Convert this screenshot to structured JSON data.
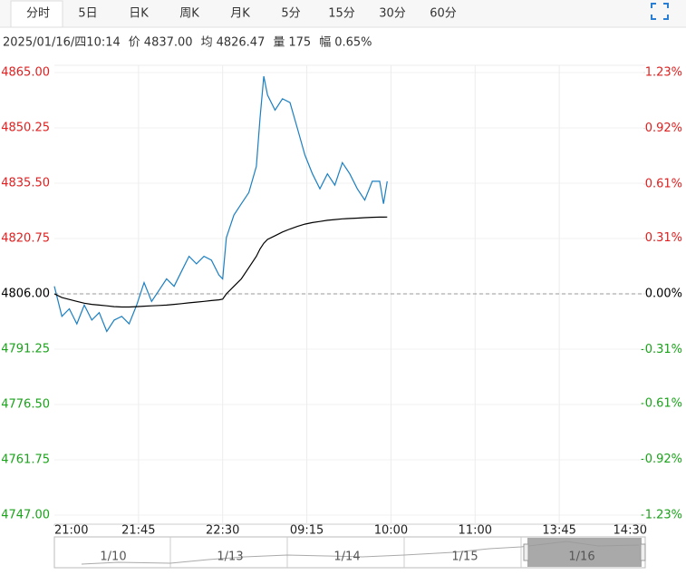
{
  "tabs": [
    "分时",
    "5日",
    "日K",
    "周K",
    "月K",
    "5分",
    "15分",
    "30分",
    "60分"
  ],
  "info": {
    "datetime": "2025/01/16/四10:14",
    "items": [
      {
        "label": "价",
        "value": "4837.00"
      },
      {
        "label": "均",
        "value": "4826.47"
      },
      {
        "label": "量",
        "value": "175"
      },
      {
        "label": "幅",
        "value": "0.65%"
      }
    ]
  },
  "navigator": {
    "labels": [
      "1/10",
      "1/13",
      "1/14",
      "1/15",
      "1/16"
    ]
  },
  "chart_data": {
    "type": "line",
    "x": [
      0,
      4,
      8,
      12,
      16,
      20,
      24,
      28,
      32,
      36,
      40,
      44,
      48,
      52,
      56,
      60,
      64,
      68,
      72,
      76,
      80,
      84,
      88,
      90,
      92,
      96,
      100,
      104,
      108,
      110,
      112,
      114,
      118,
      122,
      126,
      130,
      134,
      138,
      142,
      146,
      150,
      154,
      158,
      162,
      166,
      170,
      174,
      176,
      178
    ],
    "series": [
      {
        "color": "#1b7fc1",
        "values": [
          4808,
          4800,
          4802,
          4798,
          4803,
          4799,
          4801,
          4796,
          4799,
          4800,
          4798,
          4803,
          4809,
          4804,
          4807,
          4810,
          4808,
          4812,
          4816,
          4814,
          4816,
          4815,
          4811,
          4810,
          4821,
          4827,
          4830,
          4833,
          4840,
          4853,
          4864,
          4859,
          4855,
          4858,
          4857,
          4850,
          4843,
          4838,
          4834,
          4838,
          4835,
          4841,
          4838,
          4834,
          4831,
          4836,
          4836,
          4830,
          4836
        ]
      },
      {
        "color": "#000000",
        "values": [
          4806,
          4805,
          4804.5,
          4804,
          4803.5,
          4803.2,
          4803,
          4802.8,
          4802.6,
          4802.5,
          4802.5,
          4802.6,
          4802.7,
          4802.8,
          4802.9,
          4803,
          4803.2,
          4803.4,
          4803.6,
          4803.8,
          4804,
          4804.2,
          4804.4,
          4804.6,
          4806,
          4808,
          4810,
          4813,
          4816,
          4818,
          4819.5,
          4820.5,
          4821.5,
          4822.5,
          4823.3,
          4824,
          4824.6,
          4825,
          4825.3,
          4825.6,
          4825.8,
          4826,
          4826.1,
          4826.2,
          4826.3,
          4826.4,
          4826.45,
          4826.46,
          4826.47
        ]
      }
    ],
    "xlim": [
      0,
      315
    ],
    "xticks": [
      {
        "value": 0,
        "label": "21:00"
      },
      {
        "value": 45,
        "label": "21:45"
      },
      {
        "value": 90,
        "label": "22:30"
      },
      {
        "value": 135,
        "label": "09:15"
      },
      {
        "value": 180,
        "label": "10:00"
      },
      {
        "value": 225,
        "label": "11:00"
      },
      {
        "value": 270,
        "label": "13:45"
      },
      {
        "value": 315,
        "label": "14:30"
      }
    ],
    "ylim": [
      4747,
      4865
    ],
    "yticks": [
      {
        "value": 4865,
        "label": "4865.00"
      },
      {
        "value": 4850.25,
        "label": "4850.25"
      },
      {
        "value": 4835.5,
        "label": "4835.50"
      },
      {
        "value": 4820.75,
        "label": "4820.75"
      },
      {
        "value": 4806,
        "label": "4806.00"
      },
      {
        "value": 4791.25,
        "label": "4791.25"
      },
      {
        "value": 4776.5,
        "label": "4776.50"
      },
      {
        "value": 4761.75,
        "label": "4761.75"
      },
      {
        "value": 4747,
        "label": "4747.00"
      }
    ],
    "y2lim": [
      -1.23,
      1.23
    ],
    "y2ticks": [
      {
        "value": 1.23,
        "label": "1.23%"
      },
      {
        "value": 0.92,
        "label": "0.92%"
      },
      {
        "value": 0.61,
        "label": "0.61%"
      },
      {
        "value": 0.31,
        "label": "0.31%"
      },
      {
        "value": 0,
        "label": "0.00%"
      },
      {
        "value": -0.31,
        "label": "-0.31%"
      },
      {
        "value": -0.61,
        "label": "-0.61%"
      },
      {
        "value": -0.92,
        "label": "-0.92%"
      },
      {
        "value": -1.23,
        "label": "-1.23%"
      }
    ],
    "reference_line": 4806,
    "up_color": "#e02020",
    "down_color": "#1aa31a",
    "grid": true
  }
}
